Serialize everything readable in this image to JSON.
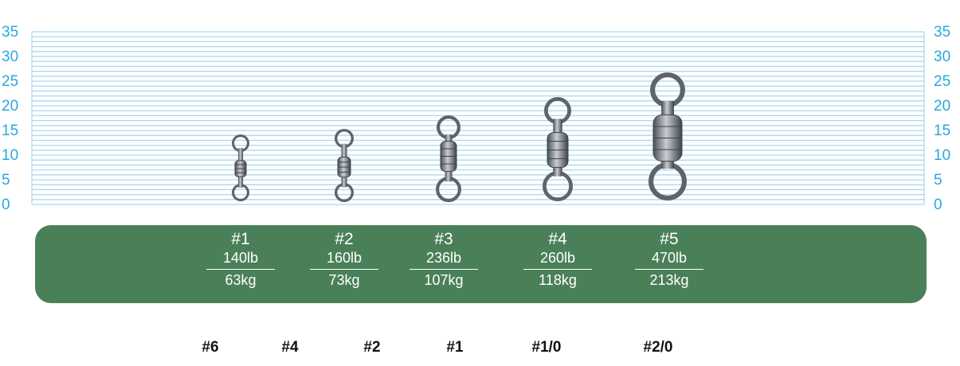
{
  "axis": {
    "ticks": [
      "35",
      "30",
      "25",
      "20",
      "15",
      "10",
      "5",
      "0"
    ],
    "color": "#29a8e0"
  },
  "band_color": "#4a8058",
  "swivels": [
    {
      "size": "#1",
      "lb": "140lb",
      "kg": "63kg"
    },
    {
      "size": "#2",
      "lb": "160lb",
      "kg": "73kg"
    },
    {
      "size": "#3",
      "lb": "236lb",
      "kg": "107kg"
    },
    {
      "size": "#4",
      "lb": "260lb",
      "kg": "118kg"
    },
    {
      "size": "#5",
      "lb": "470lb",
      "kg": "213kg"
    }
  ],
  "hook_sizes": [
    "#6",
    "#4",
    "#2",
    "#1",
    "#1/0",
    "#2/0"
  ]
}
